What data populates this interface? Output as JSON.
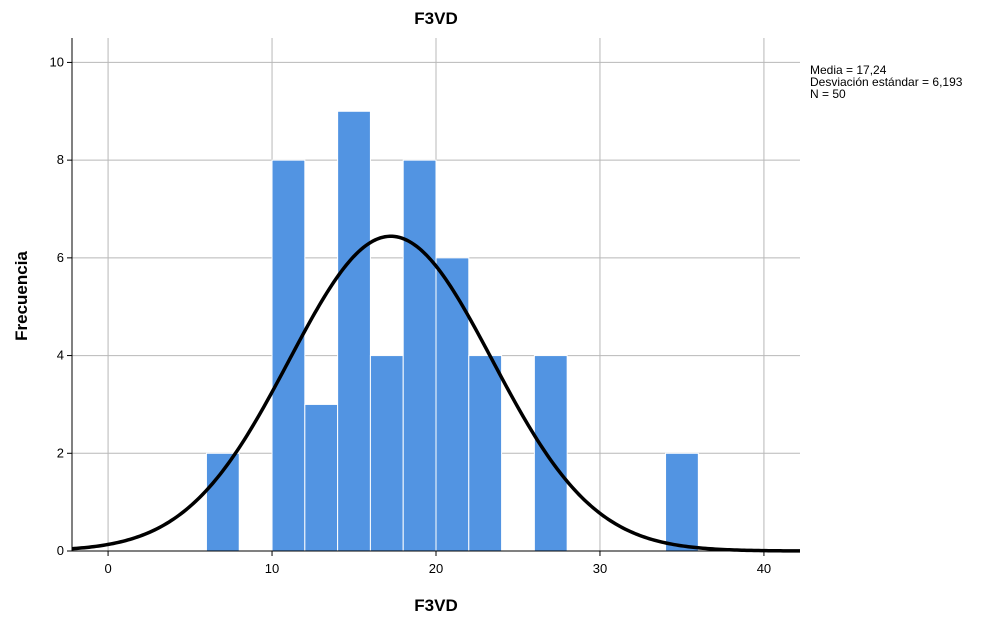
{
  "chart_data": {
    "type": "bar",
    "title": "F3VD",
    "xlabel": "F3VD",
    "ylabel": "Frecuencia",
    "xlim": [
      -2.2,
      42.2
    ],
    "ylim": [
      0,
      10.5
    ],
    "xticks": [
      0,
      10,
      20,
      30,
      40
    ],
    "yticks": [
      0,
      2,
      4,
      6,
      8,
      10
    ],
    "grid": true,
    "bar_color": "#5294e2",
    "bins": [
      {
        "start": 6,
        "end": 8,
        "count": 2
      },
      {
        "start": 8,
        "end": 10,
        "count": 0
      },
      {
        "start": 10,
        "end": 12,
        "count": 8
      },
      {
        "start": 12,
        "end": 14,
        "count": 3
      },
      {
        "start": 14,
        "end": 16,
        "count": 9
      },
      {
        "start": 16,
        "end": 18,
        "count": 4
      },
      {
        "start": 18,
        "end": 20,
        "count": 8
      },
      {
        "start": 20,
        "end": 22,
        "count": 6
      },
      {
        "start": 22,
        "end": 24,
        "count": 4
      },
      {
        "start": 24,
        "end": 26,
        "count": 0
      },
      {
        "start": 26,
        "end": 28,
        "count": 4
      },
      {
        "start": 28,
        "end": 30,
        "count": 0
      },
      {
        "start": 30,
        "end": 32,
        "count": 0
      },
      {
        "start": 32,
        "end": 34,
        "count": 0
      },
      {
        "start": 34,
        "end": 36,
        "count": 2
      }
    ],
    "normal_curve": {
      "mean": 17.24,
      "std": 6.193,
      "n": 50,
      "bin_width": 2,
      "color": "#000000"
    },
    "stats_lines": [
      "Media = 17,24",
      "Desviación estándar = 6,193",
      "N = 50"
    ]
  }
}
